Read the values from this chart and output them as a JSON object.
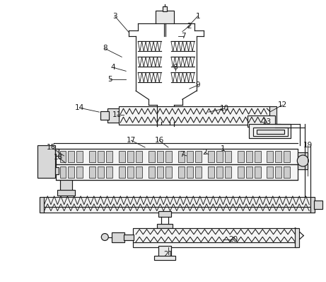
{
  "bg_color": "#ffffff",
  "line_color": "#1a1a1a",
  "figsize": [
    4.61,
    3.98
  ],
  "dpi": 100,
  "labels": [
    [
      "1",
      280,
      22,
      265,
      38
    ],
    [
      "2",
      268,
      36,
      258,
      44
    ],
    [
      "7",
      260,
      50,
      252,
      50
    ],
    [
      "3",
      162,
      22,
      182,
      45
    ],
    [
      "8",
      148,
      68,
      172,
      80
    ],
    [
      "4",
      160,
      95,
      178,
      100
    ],
    [
      "5",
      155,
      112,
      178,
      112
    ],
    [
      "6",
      248,
      95,
      248,
      100
    ],
    [
      "9",
      280,
      120,
      268,
      125
    ],
    [
      "10",
      318,
      153,
      295,
      158
    ],
    [
      "11",
      165,
      162,
      175,
      162
    ],
    [
      "14",
      112,
      152,
      140,
      158
    ],
    [
      "12",
      400,
      148,
      382,
      158
    ],
    [
      "13",
      378,
      172,
      370,
      172
    ],
    [
      "15",
      72,
      208,
      90,
      220
    ],
    [
      "17",
      185,
      198,
      205,
      208
    ],
    [
      "16",
      225,
      198,
      238,
      208
    ],
    [
      "18",
      82,
      222,
      92,
      230
    ],
    [
      "7",
      258,
      218,
      264,
      220
    ],
    [
      "2",
      290,
      215,
      295,
      218
    ],
    [
      "1",
      315,
      210,
      318,
      214
    ],
    [
      "19",
      436,
      205,
      436,
      248
    ],
    [
      "20",
      330,
      338,
      315,
      338
    ],
    [
      "21",
      238,
      360,
      238,
      350
    ]
  ]
}
